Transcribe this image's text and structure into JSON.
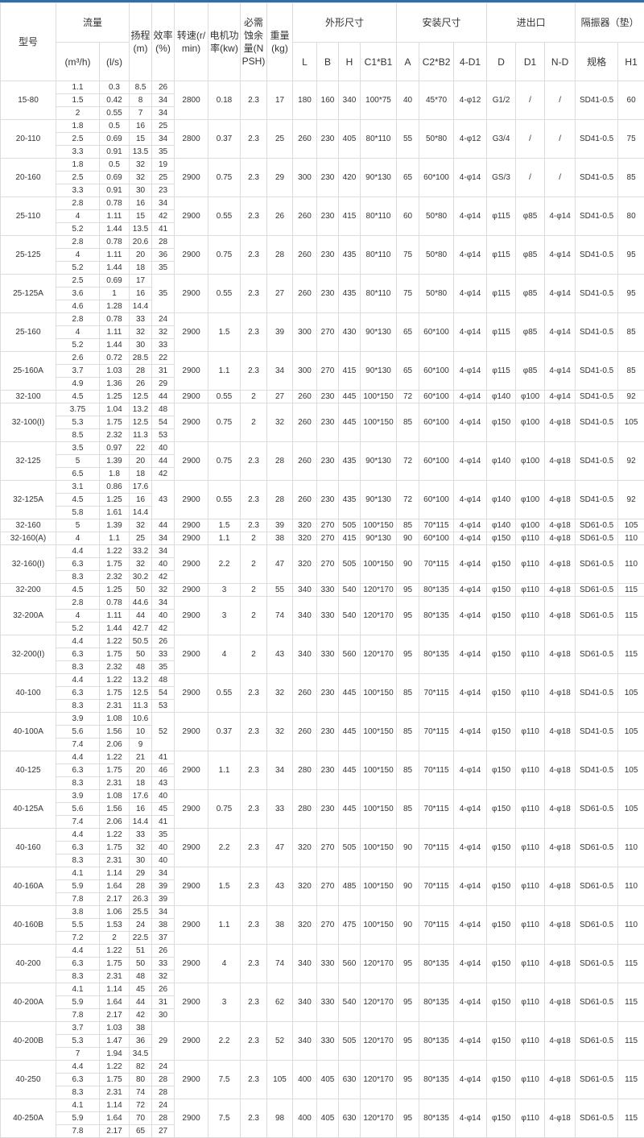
{
  "header": {
    "model": "型号",
    "flow": "流量",
    "flow_m3h": "(m³/h)",
    "flow_ls": "(l/s)",
    "head": "扬程(m)",
    "efficiency": "效率(%)",
    "speed": "转速(r/min)",
    "power": "电机功率(kw)",
    "npsh": "必需蚀余量(NPSH)",
    "weight": "重量(kg)",
    "outline": "外形尺寸",
    "install": "安装尺寸",
    "inlet_outlet": "进出口",
    "isolator": "隔振器（垫）",
    "sub": [
      "L",
      "B",
      "H",
      "C1*B1",
      "A",
      "C2*B2",
      "4-D1",
      "D",
      "D1",
      "N-D",
      "规格",
      "H1"
    ]
  },
  "colors": {
    "top_bar": "#2f6ea8",
    "border": "#dcdcdc",
    "text": "#333333"
  },
  "groups": [
    {
      "model": "15-80",
      "rows": [
        [
          "1.1",
          "0.3",
          "8.5",
          "26"
        ],
        [
          "1.5",
          "0.42",
          "8",
          "34"
        ],
        [
          "2",
          "0.55",
          "7",
          "34"
        ]
      ],
      "specs": [
        "2800",
        "0.18",
        "2.3",
        "17",
        "180",
        "160",
        "340",
        "100*75",
        "40",
        "45*70",
        "4-φ12",
        "G1/2",
        "/",
        "/",
        "SD41-0.5",
        "60"
      ]
    },
    {
      "model": "20-110",
      "rows": [
        [
          "1.8",
          "0.5",
          "16",
          "25"
        ],
        [
          "2.5",
          "0.69",
          "15",
          "34"
        ],
        [
          "3.3",
          "0.91",
          "13.5",
          "35"
        ]
      ],
      "specs": [
        "2800",
        "0.37",
        "2.3",
        "25",
        "260",
        "230",
        "405",
        "80*110",
        "55",
        "50*80",
        "4-φ12",
        "G3/4",
        "/",
        "/",
        "SD41-0.5",
        "75"
      ]
    },
    {
      "model": "20-160",
      "rows": [
        [
          "1.8",
          "0.5",
          "32",
          "19"
        ],
        [
          "2.5",
          "0.69",
          "32",
          "25"
        ],
        [
          "3.3",
          "0.91",
          "30",
          "23"
        ]
      ],
      "specs": [
        "2900",
        "0.75",
        "2.3",
        "29",
        "300",
        "230",
        "420",
        "90*130",
        "65",
        "60*100",
        "4-φ14",
        "GS/3",
        "/",
        "/",
        "SD41-0.5",
        "85"
      ]
    },
    {
      "model": "25-110",
      "rows": [
        [
          "2.8",
          "0.78",
          "16",
          "34"
        ],
        [
          "4",
          "1.11",
          "15",
          "42"
        ],
        [
          "5.2",
          "1.44",
          "13.5",
          "41"
        ]
      ],
      "specs": [
        "2900",
        "0.55",
        "2.3",
        "26",
        "260",
        "230",
        "415",
        "80*110",
        "60",
        "50*80",
        "4-φ14",
        "φ115",
        "φ85",
        "4-φ14",
        "SD41-0.5",
        "80"
      ]
    },
    {
      "model": "25-125",
      "rows": [
        [
          "2.8",
          "0.78",
          "20.6",
          "28"
        ],
        [
          "4",
          "1.11",
          "20",
          "36"
        ],
        [
          "5.2",
          "1.44",
          "18",
          "35"
        ]
      ],
      "specs": [
        "2900",
        "0.75",
        "2.3",
        "28",
        "260",
        "230",
        "435",
        "80*110",
        "75",
        "50*80",
        "4-φ14",
        "φ115",
        "φ85",
        "4-φ14",
        "SD41-0.5",
        "95"
      ]
    },
    {
      "model": "25-125A",
      "rows": [
        [
          "2.5",
          "0.69",
          "17"
        ],
        [
          "3.6",
          "1",
          "16"
        ],
        [
          "4.6",
          "1.28",
          "14.4"
        ]
      ],
      "eff": "35",
      "specs": [
        "2900",
        "0.55",
        "2.3",
        "27",
        "260",
        "230",
        "435",
        "80*110",
        "75",
        "50*80",
        "4-φ14",
        "φ115",
        "φ85",
        "4-φ14",
        "SD41-0.5",
        "95"
      ]
    },
    {
      "model": "25-160",
      "rows": [
        [
          "2.8",
          "0.78",
          "33",
          "24"
        ],
        [
          "4",
          "1.11",
          "32",
          "32"
        ],
        [
          "5.2",
          "1.44",
          "30",
          "33"
        ]
      ],
      "specs": [
        "2900",
        "1.5",
        "2.3",
        "39",
        "300",
        "270",
        "430",
        "90*130",
        "65",
        "60*100",
        "4-φ14",
        "φ115",
        "φ85",
        "4-φ14",
        "SD41-0.5",
        "85"
      ]
    },
    {
      "model": "25-160A",
      "rows": [
        [
          "2.6",
          "0.72",
          "28.5",
          "22"
        ],
        [
          "3.7",
          "1.03",
          "28",
          "31"
        ],
        [
          "4.9",
          "1.36",
          "26",
          "29"
        ]
      ],
      "specs": [
        "2900",
        "1.1",
        "2.3",
        "34",
        "300",
        "270",
        "415",
        "90*130",
        "65",
        "60*100",
        "4-φ14",
        "φ115",
        "φ85",
        "4-φ14",
        "SD41-0.5",
        "85"
      ]
    },
    {
      "model": "32-100",
      "rows": [
        [
          "4.5",
          "1.25",
          "12.5",
          "44"
        ]
      ],
      "specs": [
        "2900",
        "0.55",
        "2",
        "27",
        "260",
        "230",
        "445",
        "100*150",
        "72",
        "60*100",
        "4-φ14",
        "φ140",
        "φ100",
        "4-φ14",
        "SD41-0.5",
        "92"
      ]
    },
    {
      "model": "32-100(I)",
      "rows": [
        [
          "3.75",
          "1.04",
          "13.2",
          "48"
        ],
        [
          "5.3",
          "1.75",
          "12.5",
          "54"
        ],
        [
          "8.5",
          "2.32",
          "11.3",
          "53"
        ]
      ],
      "specs": [
        "2900",
        "0.75",
        "2",
        "32",
        "260",
        "230",
        "445",
        "100*150",
        "85",
        "60*100",
        "4-φ14",
        "φ150",
        "φ100",
        "4-φ18",
        "SD41-0.5",
        "105"
      ]
    },
    {
      "model": "32-125",
      "rows": [
        [
          "3.5",
          "0.97",
          "22",
          "40"
        ],
        [
          "5",
          "1.39",
          "20",
          "44"
        ],
        [
          "6.5",
          "1.8",
          "18",
          "42"
        ]
      ],
      "specs": [
        "2900",
        "0.75",
        "2.3",
        "28",
        "260",
        "230",
        "435",
        "90*130",
        "72",
        "60*100",
        "4-φ14",
        "φ140",
        "φ100",
        "4-φ18",
        "SD41-0.5",
        "92"
      ]
    },
    {
      "model": "32-125A",
      "rows": [
        [
          "3.1",
          "0.86",
          "17.6"
        ],
        [
          "4.5",
          "1.25",
          "16"
        ],
        [
          "5.8",
          "1.61",
          "14.4"
        ]
      ],
      "eff": "43",
      "specs": [
        "2900",
        "0.55",
        "2.3",
        "28",
        "260",
        "230",
        "435",
        "90*130",
        "72",
        "60*100",
        "4-φ14",
        "φ140",
        "φ100",
        "4-φ18",
        "SD41-0.5",
        "92"
      ]
    },
    {
      "model": "32-160",
      "rows": [
        [
          "5",
          "1.39",
          "32",
          "44"
        ]
      ],
      "specs": [
        "2900",
        "1.5",
        "2.3",
        "39",
        "320",
        "270",
        "505",
        "100*150",
        "85",
        "70*115",
        "4-φ14",
        "φ140",
        "φ100",
        "4-φ18",
        "SD61-0.5",
        "105"
      ]
    },
    {
      "model": "32-160(A)",
      "rows": [
        [
          "4",
          "1.1",
          "25",
          "34"
        ]
      ],
      "specs": [
        "2900",
        "1.1",
        "2",
        "38",
        "320",
        "270",
        "415",
        "90*130",
        "90",
        "60*100",
        "4-φ14",
        "φ150",
        "φ110",
        "4-φ18",
        "SD61-0.5",
        "110"
      ]
    },
    {
      "model": "32-160(I)",
      "rows": [
        [
          "4.4",
          "1.22",
          "33.2",
          "34"
        ],
        [
          "6.3",
          "1.75",
          "32",
          "40"
        ],
        [
          "8.3",
          "2.32",
          "30.2",
          "42"
        ]
      ],
      "specs": [
        "2900",
        "2.2",
        "2",
        "47",
        "320",
        "270",
        "505",
        "100*150",
        "90",
        "70*115",
        "4-φ14",
        "φ150",
        "φ110",
        "4-φ18",
        "SD61-0.5",
        "110"
      ]
    },
    {
      "model": "32-200",
      "rows": [
        [
          "4.5",
          "1.25",
          "50",
          "32"
        ]
      ],
      "specs": [
        "2900",
        "3",
        "2",
        "55",
        "340",
        "330",
        "540",
        "120*170",
        "95",
        "80*135",
        "4-φ14",
        "φ150",
        "φ110",
        "4-φ18",
        "SD61-0.5",
        "115"
      ]
    },
    {
      "model": "32-200A",
      "rows": [
        [
          "2.8",
          "0.78",
          "44.6",
          "34"
        ],
        [
          "4",
          "1.11",
          "44",
          "40"
        ],
        [
          "5.2",
          "1.44",
          "42.7",
          "42"
        ]
      ],
      "specs": [
        "2900",
        "3",
        "2",
        "74",
        "340",
        "330",
        "540",
        "120*170",
        "95",
        "80*135",
        "4-φ14",
        "φ150",
        "φ110",
        "4-φ18",
        "SD61-0.5",
        "115"
      ]
    },
    {
      "model": "32-200(I)",
      "rows": [
        [
          "4.4",
          "1.22",
          "50.5",
          "26"
        ],
        [
          "6.3",
          "1.75",
          "50",
          "33"
        ],
        [
          "8.3",
          "2.32",
          "48",
          "35"
        ]
      ],
      "specs": [
        "2900",
        "4",
        "2",
        "43",
        "340",
        "330",
        "560",
        "120*170",
        "95",
        "80*135",
        "4-φ14",
        "φ150",
        "φ110",
        "4-φ18",
        "SD61-0.5",
        "115"
      ]
    },
    {
      "model": "40-100",
      "rows": [
        [
          "4.4",
          "1.22",
          "13.2",
          "48"
        ],
        [
          "6.3",
          "1.75",
          "12.5",
          "54"
        ],
        [
          "8.3",
          "2.31",
          "11.3",
          "53"
        ]
      ],
      "specs": [
        "2900",
        "0.55",
        "2.3",
        "32",
        "260",
        "230",
        "445",
        "100*150",
        "85",
        "70*115",
        "4-φ14",
        "φ150",
        "φ110",
        "4-φ18",
        "SD41-0.5",
        "105"
      ]
    },
    {
      "model": "40-100A",
      "rows": [
        [
          "3.9",
          "1.08",
          "10.6"
        ],
        [
          "5.6",
          "1.56",
          "10"
        ],
        [
          "7.4",
          "2.06",
          "9"
        ]
      ],
      "eff": "52",
      "specs": [
        "2900",
        "0.37",
        "2.3",
        "32",
        "260",
        "230",
        "445",
        "100*150",
        "85",
        "70*115",
        "4-φ14",
        "φ150",
        "φ110",
        "4-φ18",
        "SD41-0.5",
        "105"
      ]
    },
    {
      "model": "40-125",
      "rows": [
        [
          "4.4",
          "1.22",
          "21",
          "41"
        ],
        [
          "6.3",
          "1.75",
          "20",
          "46"
        ],
        [
          "8.3",
          "2.31",
          "18",
          "43"
        ]
      ],
      "specs": [
        "2900",
        "1.1",
        "2.3",
        "34",
        "280",
        "230",
        "445",
        "100*150",
        "85",
        "70*115",
        "4-φ14",
        "φ150",
        "φ110",
        "4-φ18",
        "SD41-0.5",
        "105"
      ]
    },
    {
      "model": "40-125A",
      "rows": [
        [
          "3.9",
          "1.08",
          "17.6",
          "40"
        ],
        [
          "5.6",
          "1.56",
          "16",
          "45"
        ],
        [
          "7.4",
          "2.06",
          "14.4",
          "41"
        ]
      ],
      "specs": [
        "2900",
        "0.75",
        "2.3",
        "33",
        "280",
        "230",
        "445",
        "100*150",
        "85",
        "70*115",
        "4-φ14",
        "φ150",
        "φ110",
        "4-φ18",
        "SD61-0.5",
        "105"
      ]
    },
    {
      "model": "40-160",
      "rows": [
        [
          "4.4",
          "1.22",
          "33",
          "35"
        ],
        [
          "6.3",
          "1.75",
          "32",
          "40"
        ],
        [
          "8.3",
          "2.31",
          "30",
          "40"
        ]
      ],
      "specs": [
        "2900",
        "2.2",
        "2.3",
        "47",
        "320",
        "270",
        "505",
        "100*150",
        "90",
        "70*115",
        "4-φ14",
        "φ150",
        "φ110",
        "4-φ18",
        "SD61-0.5",
        "110"
      ]
    },
    {
      "model": "40-160A",
      "rows": [
        [
          "4.1",
          "1.14",
          "29",
          "34"
        ],
        [
          "5.9",
          "1.64",
          "28",
          "39"
        ],
        [
          "7.8",
          "2.17",
          "26.3",
          "39"
        ]
      ],
      "specs": [
        "2900",
        "1.5",
        "2.3",
        "43",
        "320",
        "270",
        "485",
        "100*150",
        "90",
        "70*115",
        "4-φ14",
        "φ150",
        "φ110",
        "4-φ18",
        "SD61-0.5",
        "110"
      ]
    },
    {
      "model": "40-160B",
      "rows": [
        [
          "3.8",
          "1.06",
          "25.5",
          "34"
        ],
        [
          "5.5",
          "1.53",
          "24",
          "38"
        ],
        [
          "7.2",
          "2",
          "22.5",
          "37"
        ]
      ],
      "specs": [
        "2900",
        "1.1",
        "2.3",
        "38",
        "320",
        "270",
        "475",
        "100*150",
        "90",
        "70*115",
        "4-φ14",
        "φ150",
        "φ110",
        "4-φ18",
        "SD61-0.5",
        "110"
      ]
    },
    {
      "model": "40-200",
      "rows": [
        [
          "4.4",
          "1.22",
          "51",
          "26"
        ],
        [
          "6.3",
          "1.75",
          "50",
          "33"
        ],
        [
          "8.3",
          "2.31",
          "48",
          "32"
        ]
      ],
      "specs": [
        "2900",
        "4",
        "2.3",
        "74",
        "340",
        "330",
        "560",
        "120*170",
        "95",
        "80*135",
        "4-φ14",
        "φ150",
        "φ110",
        "4-φ18",
        "SD61-0.5",
        "115"
      ]
    },
    {
      "model": "40-200A",
      "rows": [
        [
          "4.1",
          "1.14",
          "45",
          "26"
        ],
        [
          "5.9",
          "1.64",
          "44",
          "31"
        ],
        [
          "7.8",
          "2.17",
          "42",
          "30"
        ]
      ],
      "specs": [
        "2900",
        "3",
        "2.3",
        "62",
        "340",
        "330",
        "540",
        "120*170",
        "95",
        "80*135",
        "4-φ14",
        "φ150",
        "φ110",
        "4-φ18",
        "SD61-0.5",
        "115"
      ]
    },
    {
      "model": "40-200B",
      "rows": [
        [
          "3.7",
          "1.03",
          "38"
        ],
        [
          "5.3",
          "1.47",
          "36"
        ],
        [
          "7",
          "1.94",
          "34.5"
        ]
      ],
      "eff": "29",
      "specs": [
        "2900",
        "2.2",
        "2.3",
        "52",
        "340",
        "330",
        "505",
        "120*170",
        "95",
        "80*135",
        "4-φ14",
        "φ150",
        "φ110",
        "4-φ18",
        "SD61-0.5",
        "115"
      ]
    },
    {
      "model": "40-250",
      "rows": [
        [
          "4.4",
          "1.22",
          "82",
          "24"
        ],
        [
          "6.3",
          "1.75",
          "80",
          "28"
        ],
        [
          "8.3",
          "2.31",
          "74",
          "28"
        ]
      ],
      "specs": [
        "2900",
        "7.5",
        "2.3",
        "105",
        "400",
        "405",
        "630",
        "120*170",
        "95",
        "80*135",
        "4-φ14",
        "φ150",
        "φ110",
        "4-φ18",
        "SD61-0.5",
        "115"
      ]
    },
    {
      "model": "40-250A",
      "rows": [
        [
          "4.1",
          "1.14",
          "72",
          "24"
        ],
        [
          "5.9",
          "1.64",
          "70",
          "28"
        ],
        [
          "7.8",
          "2.17",
          "65",
          "27"
        ]
      ],
      "specs": [
        "2900",
        "7.5",
        "2.3",
        "98",
        "400",
        "405",
        "630",
        "120*170",
        "95",
        "80*135",
        "4-φ14",
        "φ150",
        "φ110",
        "4-φ18",
        "SD61-0.5",
        "115"
      ]
    }
  ]
}
